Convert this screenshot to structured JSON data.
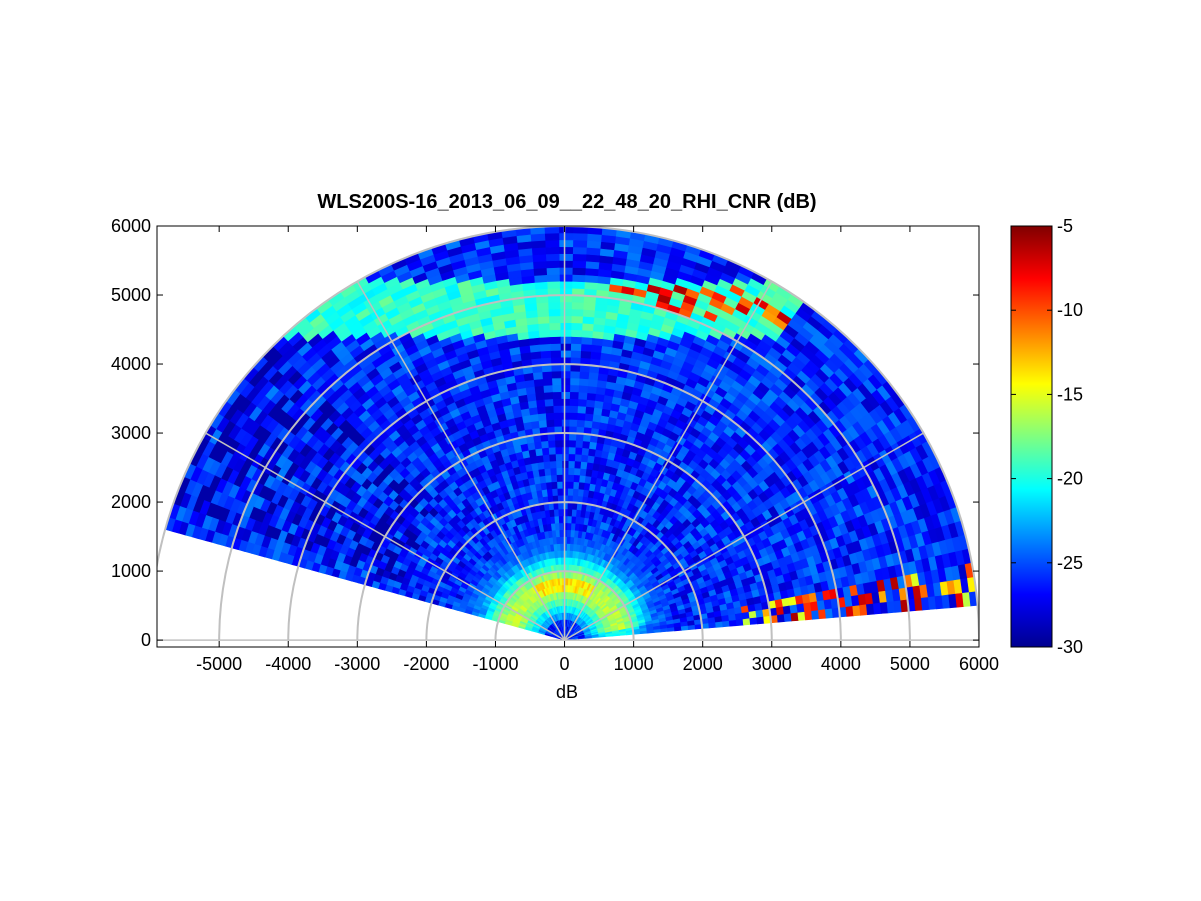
{
  "chart_data": {
    "type": "heatmap",
    "projection": "polar-rhi-sector",
    "title": "WLS200S-16_2013_06_09__22_48_20_RHI_CNR (dB)",
    "xlabel": "dB",
    "ylabel": "",
    "xlim": [
      -5900,
      6000
    ],
    "ylim": [
      -100,
      6000
    ],
    "x_ticks": [
      "-5000",
      "-4000",
      "-3000",
      "-2000",
      "-1000",
      "0",
      "1000",
      "2000",
      "3000",
      "4000",
      "5000",
      "6000"
    ],
    "y_ticks": [
      "0",
      "1000",
      "2000",
      "3000",
      "4000",
      "5000",
      "6000"
    ],
    "x_tick_values": [
      -5000,
      -4000,
      -3000,
      -2000,
      -1000,
      0,
      1000,
      2000,
      3000,
      4000,
      5000,
      6000
    ],
    "y_tick_values": [
      0,
      1000,
      2000,
      3000,
      4000,
      5000,
      6000
    ],
    "colorbar": {
      "colormap": "jet",
      "clim": [
        -30,
        -5
      ],
      "ticks": [
        "-5",
        "-10",
        "-15",
        "-20",
        "-25",
        "-30"
      ],
      "tick_values": [
        -5,
        -10,
        -15,
        -20,
        -25,
        -30
      ]
    },
    "range_max_m": 6000,
    "range_bin_m": 100,
    "elevation_start_deg": 4.8,
    "elevation_end_deg": 164.5,
    "polar_grid": {
      "range_rings_m": [
        1000,
        2000,
        3000,
        4000,
        5000,
        6000
      ],
      "spoke_angles_deg": [
        0,
        30,
        60,
        90,
        120,
        150,
        180
      ]
    },
    "grid": true,
    "background_level_db": -26,
    "features": [
      {
        "desc": "near-field aerosol layer",
        "range_m": [
          300,
          1600
        ],
        "elev_deg": [
          10,
          170
        ],
        "level_db": -17
      },
      {
        "desc": "layer core",
        "range_m": [
          650,
          900
        ],
        "elev_deg": [
          60,
          120
        ],
        "level_db": -14
      },
      {
        "desc": "overhead cloud base layer",
        "height_m": [
          4400,
          5200
        ],
        "elev_deg": [
          55,
          145
        ],
        "level_db": -19
      },
      {
        "desc": "strong cloud echoes aloft",
        "range_m": [
          5000,
          5700
        ],
        "elev_deg": [
          35,
          82
        ],
        "level_db": -8
      },
      {
        "desc": "low-elevation cloud returns",
        "range_m": [
          2600,
          6000
        ],
        "elev_deg": [
          4.8,
          11
        ],
        "level_db": -11
      }
    ]
  }
}
